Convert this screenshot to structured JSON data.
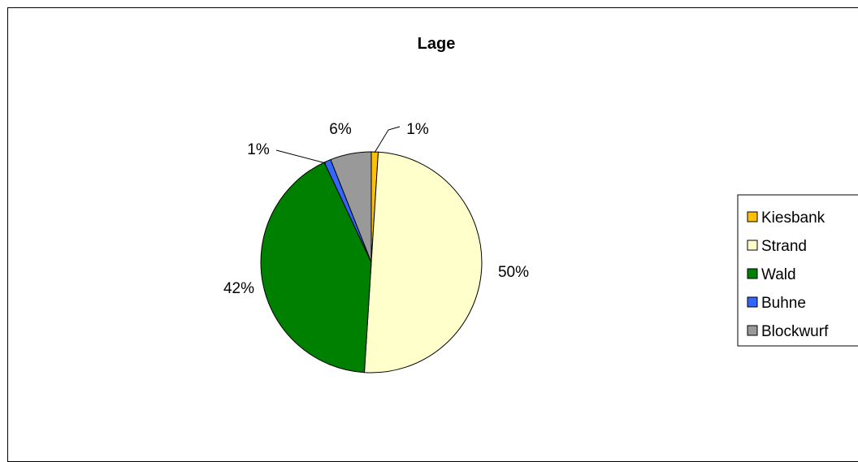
{
  "chart_data": {
    "type": "pie",
    "title": "Lage",
    "categories": [
      "Kiesbank",
      "Strand",
      "Wald",
      "Buhne",
      "Blockwurf"
    ],
    "values": [
      1,
      50,
      42,
      1,
      6
    ],
    "labels": [
      "1%",
      "50%",
      "42%",
      "1%",
      "6%"
    ],
    "colors": [
      "#FFC000",
      "#FFFFCC",
      "#008000",
      "#3366FF",
      "#999999"
    ],
    "legend_position": "right"
  }
}
